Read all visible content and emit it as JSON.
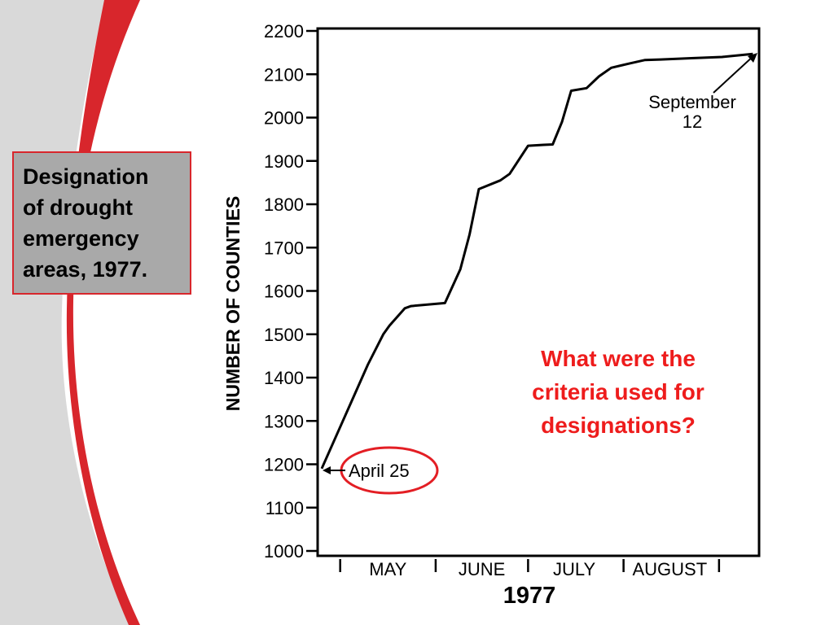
{
  "slide": {
    "title": "Designation\nof drought\nemergency\nareas, 1977.",
    "question": "What were the\ncriteria used for\ndesignations?",
    "accent_color": "#d8262c",
    "question_color": "#ee1c1c",
    "title_box_color": "#a9a9a9"
  },
  "chart_data": {
    "type": "line",
    "title": "",
    "xlabel": "1977",
    "ylabel": "NUMBER OF COUNTIES",
    "ylim": [
      1000,
      2200
    ],
    "yticks": [
      "1000",
      "1100",
      "1200",
      "1300",
      "1400",
      "1500",
      "1600",
      "1700",
      "1800",
      "1900",
      "2000",
      "2100",
      "2200"
    ],
    "x_unit": "days from April 25, 1977",
    "xlim": [
      0,
      142
    ],
    "month_labels": [
      {
        "label": "MAY",
        "x": 21.5
      },
      {
        "label": "JUNE",
        "x": 52
      },
      {
        "label": "JULY",
        "x": 82
      },
      {
        "label": "AUGUST",
        "x": 113
      }
    ],
    "month_ticks": [
      6,
      37,
      67,
      98,
      129
    ],
    "series": [
      {
        "values": [
          {
            "x": 0,
            "y": 1190
          },
          {
            "x": 5,
            "y": 1270
          },
          {
            "x": 10,
            "y": 1350
          },
          {
            "x": 15,
            "y": 1430
          },
          {
            "x": 20,
            "y": 1500
          },
          {
            "x": 22,
            "y": 1520
          },
          {
            "x": 27,
            "y": 1560
          },
          {
            "x": 29,
            "y": 1565
          },
          {
            "x": 40,
            "y": 1572
          },
          {
            "x": 45,
            "y": 1650
          },
          {
            "x": 48,
            "y": 1730
          },
          {
            "x": 50,
            "y": 1800
          },
          {
            "x": 51,
            "y": 1835
          },
          {
            "x": 58,
            "y": 1855
          },
          {
            "x": 61,
            "y": 1870
          },
          {
            "x": 67,
            "y": 1935
          },
          {
            "x": 72,
            "y": 1937
          },
          {
            "x": 75,
            "y": 1938
          },
          {
            "x": 78,
            "y": 1990
          },
          {
            "x": 81,
            "y": 2062
          },
          {
            "x": 86,
            "y": 2068
          },
          {
            "x": 90,
            "y": 2095
          },
          {
            "x": 94,
            "y": 2115
          },
          {
            "x": 100,
            "y": 2125
          },
          {
            "x": 105,
            "y": 2133
          },
          {
            "x": 110,
            "y": 2134
          },
          {
            "x": 120,
            "y": 2137
          },
          {
            "x": 130,
            "y": 2140
          },
          {
            "x": 140,
            "y": 2147
          }
        ]
      }
    ],
    "annotations": [
      {
        "text": "April 25",
        "x": 0,
        "y": 1190,
        "circled": true
      },
      {
        "text": "September\n12",
        "x": 140,
        "y": 2147
      }
    ],
    "grid": false
  }
}
